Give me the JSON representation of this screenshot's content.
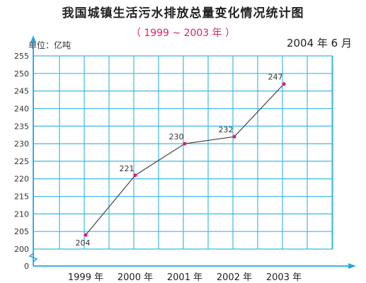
{
  "chart_data": {
    "type": "line",
    "title": "我国城镇生活污水排放总量变化情况统计图",
    "subtitle": "（ 1999 ~ 2003 年 ）",
    "unit_label": "单位：亿吨",
    "date_label": "2004 年 6 月",
    "categories": [
      "1999 年",
      "2000 年",
      "2001 年",
      "2002 年",
      "2003 年"
    ],
    "values": [
      204,
      221,
      230,
      232,
      247
    ],
    "value_labels": [
      "204",
      "221",
      "230",
      "232",
      "247"
    ],
    "y_ticks": [
      "0",
      "200",
      "205",
      "210",
      "215",
      "220",
      "225",
      "230",
      "235",
      "240",
      "245",
      "250",
      "255"
    ],
    "ylim": [
      200,
      255
    ],
    "axis_break": true,
    "grid": true,
    "colors": {
      "grid": "#3fb8e6",
      "axis": "#27a6de",
      "line": "#444444",
      "point": "#e0206a"
    }
  }
}
